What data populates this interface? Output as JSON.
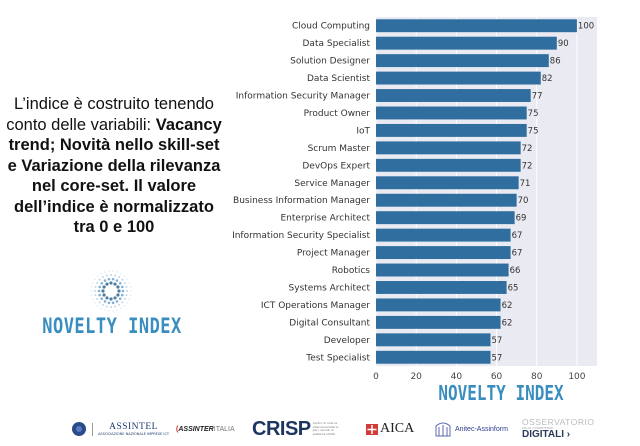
{
  "description": {
    "intro": "L’indice è costruito tenendo conto delle variabili: ",
    "bold": "Vacancy trend; Novità nello skill-set e Variazione della rilevanza nel core-set. Il valore dell’indice è normalizzato tra 0 e 100"
  },
  "logo_text": "NOVELTY INDEX",
  "chart_data": {
    "type": "bar",
    "orientation": "horizontal",
    "title": "",
    "xlabel": "NOVELTY INDEX",
    "ylabel": "",
    "categories": [
      "Cloud Computing",
      "Data Specialist",
      "Solution Designer",
      "Data Scientist",
      "Information Security Manager",
      "Product Owner",
      "IoT",
      "Scrum Master",
      "DevOps Expert",
      "Service Manager",
      "Business Information Manager",
      "Enterprise Architect",
      "Information Security Specialist",
      "Project Manager",
      "Robotics",
      "Systems Architect",
      "ICT Operations Manager",
      "Digital Consultant",
      "Developer",
      "Test Specialist"
    ],
    "values": [
      100,
      90,
      86,
      82,
      77,
      75,
      75,
      72,
      72,
      71,
      70,
      69,
      67,
      67,
      66,
      65,
      62,
      62,
      57,
      57
    ],
    "xlim": [
      0,
      110
    ],
    "xticks": [
      "0",
      "20",
      "40",
      "60",
      "80",
      "100"
    ],
    "grid": true,
    "bar_color": "#2f6e9f",
    "background_color": "#eaeaf2"
  },
  "footer": {
    "logos": [
      {
        "name": "ASSINTEL",
        "sub": "ASSOCIAZIONE NAZIONALE IMPRESE ICT"
      },
      {
        "name": "ASSINTER",
        "suffix": "ITALIA"
      },
      {
        "name": "CRISP",
        "sub": "centro di ricerca interuniversitario per i servizi di pubblica utilità"
      },
      {
        "name": "AICA"
      },
      {
        "name": "Anitec-Assinform"
      },
      {
        "name_top": "OSSERVATORIO",
        "name_mid": "DELLE COMPETENZE",
        "name_bot": "DIGITALI ›"
      }
    ]
  }
}
